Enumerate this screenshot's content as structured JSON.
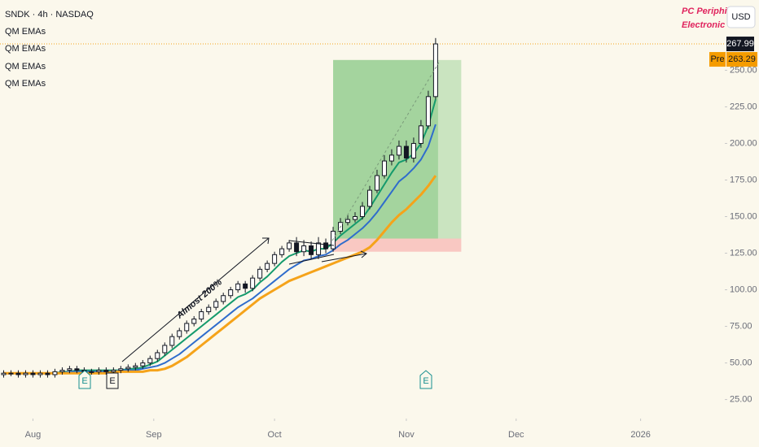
{
  "chart_data": {
    "type": "candlestick",
    "title": "SNDK · 4h · NASDAQ",
    "legend": [
      "QM EMAs",
      "QM EMAs",
      "QM EMAs",
      "QM EMAs"
    ],
    "currency": "USD",
    "sectors": [
      "PC Periphir",
      "Electronic T"
    ],
    "annotation": "Almost 200%",
    "earnings": [
      "E",
      "E",
      "E"
    ],
    "xlim": [
      -0.5,
      98.5
    ],
    "xticks": [
      {
        "value": 4,
        "label": "Aug"
      },
      {
        "value": 20.5,
        "label": "Sep"
      },
      {
        "value": 37,
        "label": "Oct"
      },
      {
        "value": 55,
        "label": "Nov"
      },
      {
        "value": 70,
        "label": "Dec"
      },
      {
        "value": 87,
        "label": "2026"
      }
    ],
    "ylim": [
      12,
      298
    ],
    "yticks": [
      {
        "value": 25,
        "label": "25.00"
      },
      {
        "value": 50,
        "label": "50.00"
      },
      {
        "value": 75,
        "label": "75.00"
      },
      {
        "value": 100,
        "label": "100.00"
      },
      {
        "value": 125,
        "label": "125.00"
      },
      {
        "value": 150,
        "label": "150.00"
      },
      {
        "value": 175,
        "label": "175.00"
      },
      {
        "value": 200,
        "label": "200.00"
      },
      {
        "value": 225,
        "label": "225.00"
      },
      {
        "value": 250,
        "label": "250.00"
      }
    ],
    "up_color": "#ffffff",
    "down_color": "#131722",
    "open": [
      42,
      43,
      43,
      42,
      43,
      42,
      43,
      42,
      44,
      45,
      46,
      45,
      44,
      44,
      45,
      44,
      45,
      46,
      47,
      48,
      50,
      53,
      57,
      62,
      68,
      72,
      77,
      80,
      85,
      88,
      92,
      96,
      100,
      104,
      101,
      108,
      114,
      118,
      124,
      128,
      132,
      126,
      130,
      124,
      132,
      128,
      140,
      146,
      148,
      150,
      157,
      168,
      178,
      188,
      192,
      198,
      190,
      200,
      212,
      232
    ],
    "high": [
      45,
      45,
      45,
      45,
      45,
      45,
      45,
      46,
      47,
      48,
      48,
      47,
      46,
      47,
      47,
      47,
      48,
      49,
      50,
      52,
      55,
      59,
      64,
      70,
      74,
      79,
      82,
      87,
      90,
      94,
      98,
      102,
      106,
      106,
      110,
      116,
      120,
      126,
      130,
      134,
      136,
      134,
      133,
      136,
      135,
      143,
      149,
      151,
      153,
      160,
      171,
      182,
      192,
      196,
      202,
      202,
      204,
      216,
      236,
      272
    ],
    "low": [
      40,
      41,
      40,
      40,
      40,
      40,
      40,
      40,
      42,
      43,
      43,
      42,
      42,
      42,
      42,
      42,
      43,
      44,
      45,
      46,
      48,
      51,
      55,
      60,
      66,
      70,
      75,
      78,
      83,
      86,
      90,
      94,
      98,
      98,
      99,
      106,
      112,
      116,
      122,
      126,
      123,
      123,
      121,
      121,
      125,
      126,
      138,
      144,
      146,
      148,
      155,
      166,
      176,
      185,
      189,
      187,
      187,
      197,
      210,
      230
    ],
    "close": [
      43,
      43,
      42,
      43,
      42,
      43,
      42,
      44,
      45,
      46,
      45,
      44,
      44,
      45,
      44,
      45,
      46,
      47,
      48,
      50,
      53,
      57,
      62,
      68,
      72,
      77,
      80,
      85,
      88,
      92,
      96,
      100,
      104,
      101,
      108,
      114,
      118,
      124,
      128,
      132,
      126,
      130,
      124,
      132,
      128,
      140,
      146,
      148,
      150,
      157,
      168,
      178,
      188,
      192,
      198,
      190,
      200,
      212,
      232,
      268
    ],
    "series": [
      {
        "color": "#159a6c",
        "values": [
          43,
          43,
          43,
          43,
          43,
          43,
          43,
          43,
          44,
          44,
          45,
          45,
          45,
          45,
          45,
          45,
          45,
          46,
          46,
          47,
          49,
          51,
          55,
          59,
          63,
          67,
          71,
          75,
          79,
          83,
          87,
          91,
          95,
          97,
          100,
          105,
          109,
          114,
          119,
          123,
          125,
          127,
          126,
          128,
          128,
          132,
          137,
          141,
          145,
          149,
          156,
          164,
          172,
          180,
          187,
          189,
          193,
          200,
          212,
          230
        ]
      },
      {
        "color": "#2f6ccc",
        "values": [
          43,
          43,
          43,
          43,
          43,
          43,
          43,
          43,
          43,
          44,
          44,
          44,
          44,
          44,
          44,
          44,
          45,
          45,
          45,
          46,
          47,
          48,
          50,
          53,
          56,
          60,
          64,
          68,
          72,
          76,
          80,
          84,
          88,
          91,
          94,
          98,
          102,
          106,
          110,
          114,
          117,
          120,
          121,
          123,
          124,
          127,
          131,
          134,
          138,
          142,
          147,
          153,
          160,
          167,
          174,
          178,
          183,
          189,
          198,
          213
        ]
      },
      {
        "color": "#f5a31a",
        "values": [
          43,
          43,
          43,
          43,
          43,
          43,
          43,
          43,
          43,
          43,
          43,
          43,
          43,
          43,
          43,
          44,
          44,
          44,
          44,
          44,
          45,
          45,
          46,
          48,
          51,
          54,
          58,
          62,
          66,
          70,
          74,
          78,
          82,
          86,
          90,
          94,
          97,
          100,
          103,
          106,
          108,
          110,
          112,
          114,
          116,
          118,
          120,
          122,
          124,
          126,
          129,
          134,
          140,
          146,
          151,
          155,
          160,
          165,
          171,
          178
        ]
      }
    ],
    "position": {
      "start": 45,
      "end": 62.5,
      "entry": 135,
      "target": 257,
      "stop": 126
    },
    "last_price": 267.99,
    "premarket": {
      "label": "Pre",
      "value": 263.29
    }
  }
}
